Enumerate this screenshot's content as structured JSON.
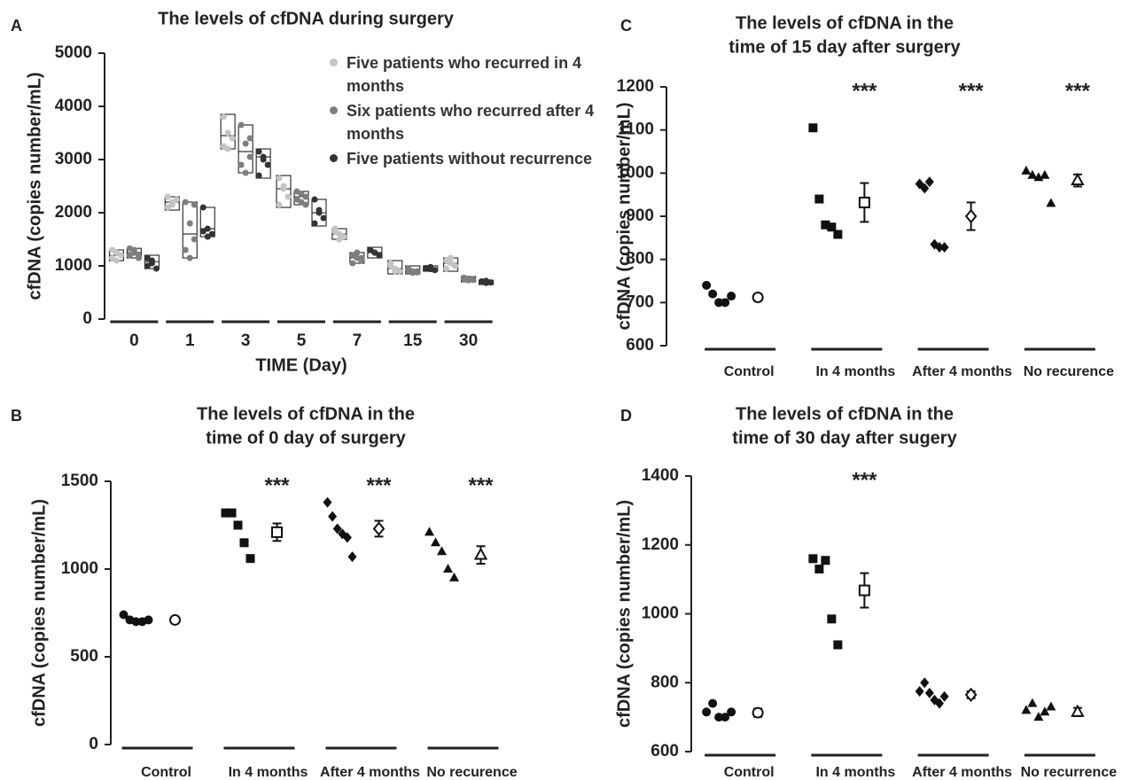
{
  "chart_data": [
    {
      "type": "box",
      "panel_label": "A",
      "title": [
        "The levels of cfDNA during surgery"
      ],
      "y_label": "cfDNA (copies number/mL)",
      "x_label": "TIME (Day)",
      "categories": [
        "0",
        "1",
        "3",
        "5",
        "7",
        "15",
        "30"
      ],
      "ylim": [
        0,
        5000
      ],
      "yticks": [
        0,
        1000,
        2000,
        3000,
        4000,
        5000
      ],
      "series": [
        {
          "name": "Five patients who recurred in 4 months",
          "color": "#c4c4c4",
          "boxes": [
            [
              1100,
              1200,
              1300
            ],
            [
              2050,
              2200,
              2300
            ],
            [
              3200,
              3450,
              3850
            ],
            [
              2100,
              2450,
              2700
            ],
            [
              1500,
              1600,
              1700
            ],
            [
              850,
              950,
              1100
            ],
            [
              900,
              1050,
              1150
            ]
          ],
          "points": [
            [
              1150,
              1250,
              1200,
              1300,
              1100
            ],
            [
              2300,
              2200,
              2250,
              2100,
              2150
            ],
            [
              3800,
              3500,
              3400,
              3250,
              3200
            ],
            [
              2650,
              2450,
              2300,
              2150,
              2500
            ],
            [
              1650,
              1600,
              1550,
              1700,
              1500
            ],
            [
              1050,
              950,
              900,
              1000,
              900
            ],
            [
              1100,
              1050,
              1000,
              950,
              1150
            ]
          ]
        },
        {
          "name": "Six patients who recurred after 4 months",
          "color": "#7e7e7e",
          "boxes": [
            [
              1150,
              1250,
              1330
            ],
            [
              1150,
              1600,
              2200
            ],
            [
              2750,
              3150,
              3650
            ],
            [
              2150,
              2300,
              2400
            ],
            [
              1050,
              1150,
              1250
            ],
            [
              850,
              900,
              1000
            ],
            [
              700,
              750,
              800
            ]
          ],
          "points": [
            [
              1200,
              1300,
              1150,
              1330,
              1250,
              1180
            ],
            [
              2200,
              1800,
              1500,
              1300,
              1150,
              2150
            ],
            [
              3650,
              3300,
              3050,
              2900,
              2750,
              3400
            ],
            [
              2400,
              2350,
              2300,
              2250,
              2200,
              2150
            ],
            [
              1200,
              1150,
              1100,
              1050,
              1250,
              1150
            ],
            [
              950,
              900,
              880,
              920,
              870,
              900
            ],
            [
              750,
              760,
              740,
              780,
              730,
              750
            ]
          ]
        },
        {
          "name": "Five patients without recurrence",
          "color": "#333333",
          "boxes": [
            [
              950,
              1080,
              1200
            ],
            [
              1550,
              1700,
              2100
            ],
            [
              2650,
              3050,
              3200
            ],
            [
              1750,
              2000,
              2250
            ],
            [
              1150,
              1250,
              1350
            ],
            [
              900,
              950,
              1000
            ],
            [
              650,
              700,
              730
            ]
          ],
          "points": [
            [
              1000,
              1100,
              950,
              1150,
              1050
            ],
            [
              2100,
              1700,
              1600,
              1650,
              1550
            ],
            [
              3150,
              3050,
              2900,
              2700,
              3000
            ],
            [
              2250,
              2050,
              1900,
              1800,
              2000
            ],
            [
              1300,
              1250,
              1200,
              1300,
              1250
            ],
            [
              950,
              980,
              920,
              960,
              940
            ],
            [
              700,
              720,
              690,
              710,
              680
            ]
          ]
        }
      ]
    },
    {
      "type": "strip",
      "panel_label": "B",
      "title": [
        "The levels of cfDNA in the",
        "time of 0 day of surgery"
      ],
      "y_label": "cfDNA (copies number/mL)",
      "ylim": [
        0,
        1500
      ],
      "yticks": [
        0,
        500,
        1000,
        1500
      ],
      "color": "#111111",
      "groups": [
        {
          "name": "Control",
          "marker": "circle",
          "values": [
            740,
            710,
            700,
            700,
            710
          ],
          "mean": 710,
          "error": 15
        },
        {
          "name": "In 4 months",
          "marker": "square",
          "values": [
            1320,
            1320,
            1250,
            1150,
            1060
          ],
          "mean": 1210,
          "error": 50,
          "annotation": "***"
        },
        {
          "name": "After 4 months",
          "marker": "diamond",
          "values": [
            1380,
            1300,
            1230,
            1200,
            1180,
            1070
          ],
          "mean": 1230,
          "error": 45,
          "annotation": "***"
        },
        {
          "name": "No recurence",
          "marker": "triangle",
          "values": [
            1210,
            1150,
            1100,
            1000,
            950
          ],
          "mean": 1080,
          "error": 50,
          "annotation": "***"
        }
      ]
    },
    {
      "type": "strip",
      "panel_label": "C",
      "title": [
        "The levels of cfDNA in the",
        "time of 15 day after surgery"
      ],
      "y_label": "cfDNA (copies number/mL)",
      "ylim": [
        600,
        1200
      ],
      "yticks": [
        600,
        700,
        800,
        900,
        1000,
        1100,
        1200
      ],
      "color": "#111111",
      "groups": [
        {
          "name": "Control",
          "marker": "circle",
          "values": [
            740,
            720,
            700,
            700,
            715
          ],
          "mean": 712,
          "error": 8
        },
        {
          "name": "In 4 months",
          "marker": "square",
          "values": [
            1105,
            940,
            880,
            875,
            858
          ],
          "mean": 932,
          "error": 45,
          "annotation": "***"
        },
        {
          "name": "After 4 months",
          "marker": "diamond",
          "values": [
            975,
            965,
            980,
            835,
            828,
            828
          ],
          "mean": 900,
          "error": 32,
          "annotation": "***"
        },
        {
          "name": "No recurence",
          "marker": "triangle",
          "values": [
            1005,
            995,
            990,
            995,
            930
          ],
          "mean": 983,
          "error": 14,
          "annotation": "***"
        }
      ]
    },
    {
      "type": "strip",
      "panel_label": "D",
      "title": [
        "The levels of cfDNA in the",
        "time of 30 day after sugery"
      ],
      "y_label": "cfDNA (copies number/mL)",
      "ylim": [
        600,
        1400
      ],
      "yticks": [
        600,
        800,
        1000,
        1200,
        1400
      ],
      "color": "#111111",
      "groups": [
        {
          "name": "Control",
          "marker": "circle",
          "values": [
            715,
            740,
            700,
            700,
            715
          ],
          "mean": 713,
          "error": 12
        },
        {
          "name": "In 4 months",
          "marker": "square",
          "values": [
            1160,
            1130,
            1155,
            985,
            910
          ],
          "mean": 1068,
          "error": 50,
          "annotation": "***"
        },
        {
          "name": "After 4 months",
          "marker": "diamond",
          "values": [
            775,
            800,
            770,
            750,
            740,
            760
          ],
          "mean": 765,
          "error": 10
        },
        {
          "name": "No recurrence",
          "marker": "triangle",
          "values": [
            720,
            740,
            700,
            715,
            730
          ],
          "mean": 715,
          "error": 12
        }
      ]
    }
  ]
}
